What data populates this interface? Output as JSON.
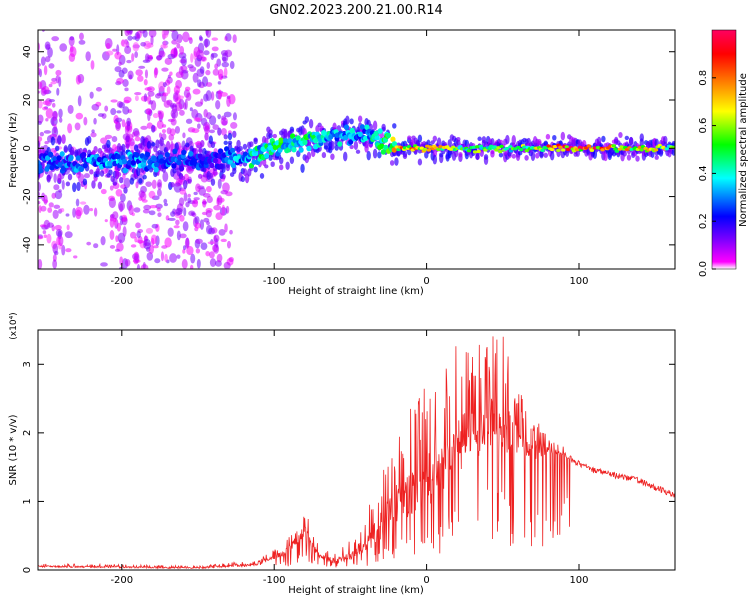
{
  "title": "GN02.2023.200.21.00.R14",
  "chart_data": [
    {
      "type": "heatmap",
      "panel": "top",
      "xlabel": "Height of straight line (km)",
      "ylabel": "Frequency (Hz)",
      "xlim": [
        -255,
        163
      ],
      "ylim": [
        -50,
        49
      ],
      "xticks": [
        -200,
        -100,
        0,
        100
      ],
      "xticklabels": [
        "-200",
        "-100",
        "0",
        "100"
      ],
      "yticks": [
        -40,
        -20,
        0,
        20,
        40
      ],
      "yticklabels": [
        "-40",
        "-20",
        "0",
        "20",
        "40"
      ],
      "colorbar": {
        "label": "Normalized spectral amplitude",
        "range": [
          0,
          1
        ],
        "ticks": [
          0.0,
          0.2,
          0.4,
          0.6,
          0.8
        ],
        "ticklabels": [
          "0.0",
          "0.2",
          "0.4",
          "0.6",
          "0.8"
        ],
        "colormap": [
          "#ffffff",
          "#ff00ff",
          "#8000ff",
          "#0000ff",
          "#00ffff",
          "#00ff00",
          "#ffff00",
          "#ff8000",
          "#ff0000",
          "#ff0080"
        ]
      },
      "ridge": {
        "x": [
          -255,
          -200,
          -140,
          -120,
          -100,
          -80,
          -60,
          -40,
          -30,
          -20,
          0,
          20,
          40,
          60,
          80,
          100,
          120,
          140,
          163
        ],
        "y": [
          -6,
          -5,
          -5,
          -4,
          0,
          3,
          5,
          6,
          3,
          0,
          0,
          0,
          0,
          0,
          0,
          0,
          0,
          0,
          0
        ],
        "amplitude": [
          0.3,
          0.35,
          0.25,
          0.4,
          0.5,
          0.5,
          0.4,
          0.35,
          0.5,
          0.75,
          0.75,
          0.6,
          0.55,
          0.55,
          0.8,
          0.95,
          0.8,
          0.7,
          0.6
        ]
      },
      "grid": false
    },
    {
      "type": "line",
      "panel": "bottom",
      "xlabel": "Height of straight line (km)",
      "ylabel": "SNR (10 * v/v)",
      "yscale_label": "(x10⁴)",
      "xlim": [
        -255,
        163
      ],
      "ylim": [
        0,
        35000
      ],
      "xticks": [
        -200,
        -100,
        0,
        100
      ],
      "xticklabels": [
        "-200",
        "-100",
        "0",
        "100"
      ],
      "yticks": [
        0,
        10000,
        20000,
        30000
      ],
      "yticklabels": [
        "0",
        "1",
        "2",
        "3"
      ],
      "color": "#ee2222",
      "envelope": {
        "x": [
          -255,
          -200,
          -150,
          -110,
          -100,
          -90,
          -85,
          -80,
          -75,
          -70,
          -60,
          -50,
          -40,
          -30,
          -20,
          -10,
          0,
          10,
          20,
          30,
          40,
          50,
          60,
          70,
          80,
          90,
          100,
          110,
          120,
          130,
          140,
          150,
          163
        ],
        "base": [
          400,
          300,
          200,
          600,
          1500,
          2500,
          3500,
          5000,
          3000,
          1500,
          900,
          1500,
          2500,
          4000,
          6500,
          7500,
          9000,
          11000,
          14000,
          16000,
          17500,
          17000,
          16500,
          16000,
          17000,
          16500,
          15500,
          14500,
          14000,
          13500,
          13000,
          12000,
          11000
        ],
        "peak": [
          1000,
          800,
          600,
          1500,
          3000,
          5000,
          7000,
          9000,
          6000,
          3500,
          2500,
          4500,
          8000,
          14000,
          20000,
          24000,
          27000,
          29000,
          33000,
          32000,
          34000,
          35000,
          27000,
          23000,
          19000,
          18000,
          17000,
          16000,
          15000,
          14500,
          13500,
          12500,
          11500
        ]
      },
      "grid": false
    }
  ]
}
